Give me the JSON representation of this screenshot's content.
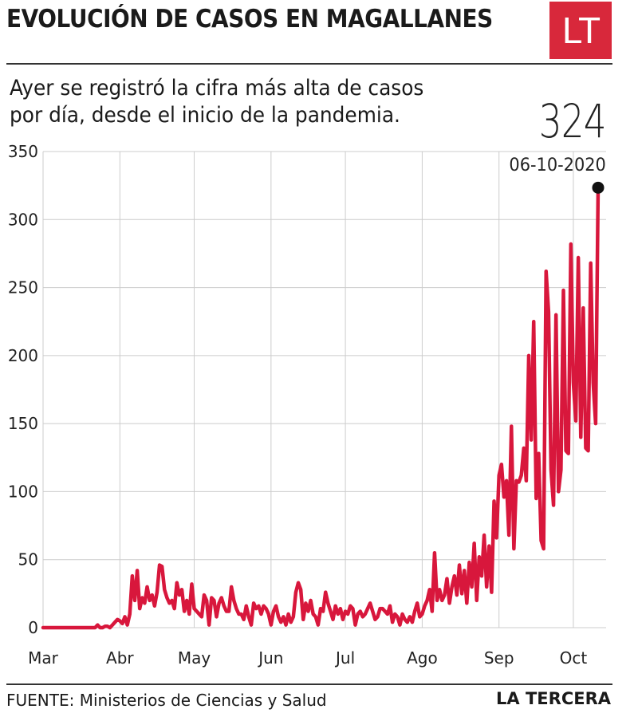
{
  "header": {
    "title": "EVOLUCIÓN DE CASOS EN MAGALLANES",
    "logo_text": "LT",
    "subtitle": "Ayer se registró la cifra más alta de casos por día, desde el inicio de la pandemia."
  },
  "highlight": {
    "value": "324",
    "date": "06-10-2020"
  },
  "footer": {
    "source": "FUENTE: Ministerios de Ciencias y Salud",
    "brand": "LA TERCERA"
  },
  "colors": {
    "line": "#d8173c",
    "logo_bg": "#d8283b",
    "grid": "#cccccc",
    "text": "#1a1a1a"
  },
  "chart_data": {
    "type": "line",
    "title": "EVOLUCIÓN DE CASOS EN MAGALLANES",
    "xlabel": "",
    "ylabel": "",
    "ylim": [
      0,
      350
    ],
    "yticks": [
      0,
      50,
      100,
      150,
      200,
      250,
      300,
      350
    ],
    "grid": true,
    "x_tick_labels": [
      "Mar",
      "Abr",
      "May",
      "Jun",
      "Jul",
      "Ago",
      "Sep",
      "Oct"
    ],
    "x_tick_index": [
      0,
      31,
      61,
      92,
      122,
      153,
      184,
      214
    ],
    "start_date": "2020-03-01",
    "end_date": "2020-10-06",
    "series": [
      {
        "name": "",
        "values": [
          0,
          0,
          0,
          0,
          0,
          0,
          0,
          0,
          0,
          0,
          0,
          0,
          0,
          0,
          0,
          0,
          0,
          0,
          0,
          0,
          0,
          0,
          2,
          0,
          0,
          1,
          1,
          0,
          2,
          4,
          6,
          5,
          3,
          8,
          2,
          10,
          38,
          20,
          42,
          14,
          22,
          18,
          30,
          20,
          24,
          16,
          26,
          46,
          45,
          28,
          22,
          18,
          20,
          14,
          33,
          24,
          28,
          12,
          20,
          10,
          32,
          14,
          12,
          10,
          8,
          24,
          20,
          2,
          22,
          20,
          8,
          18,
          22,
          16,
          12,
          12,
          30,
          20,
          14,
          10,
          10,
          6,
          16,
          8,
          2,
          18,
          14,
          16,
          10,
          16,
          14,
          10,
          2,
          12,
          16,
          8,
          4,
          8,
          2,
          10,
          4,
          8,
          26,
          33,
          28,
          6,
          18,
          12,
          20,
          10,
          8,
          2,
          14,
          12,
          26,
          18,
          12,
          6,
          16,
          10,
          14,
          6,
          12,
          10,
          16,
          14,
          2,
          10,
          12,
          8,
          10,
          14,
          18,
          12,
          6,
          8,
          14,
          14,
          12,
          10,
          16,
          4,
          10,
          8,
          2,
          10,
          6,
          4,
          8,
          4,
          12,
          18,
          8,
          10,
          16,
          20,
          28,
          12,
          55,
          20,
          28,
          20,
          24,
          36,
          18,
          30,
          38,
          24,
          46,
          25,
          42,
          18,
          48,
          30,
          62,
          20,
          52,
          38,
          68,
          30,
          60,
          26,
          93,
          66,
          112,
          120,
          96,
          108,
          68,
          148,
          58,
          108,
          107,
          112,
          132,
          108,
          200,
          138,
          225,
          95,
          128,
          64,
          58,
          262,
          232,
          116,
          90,
          230,
          100,
          116,
          248,
          130,
          128,
          282,
          180,
          152,
          272,
          140,
          235,
          132,
          130,
          268,
          180,
          150,
          324
        ]
      }
    ]
  }
}
